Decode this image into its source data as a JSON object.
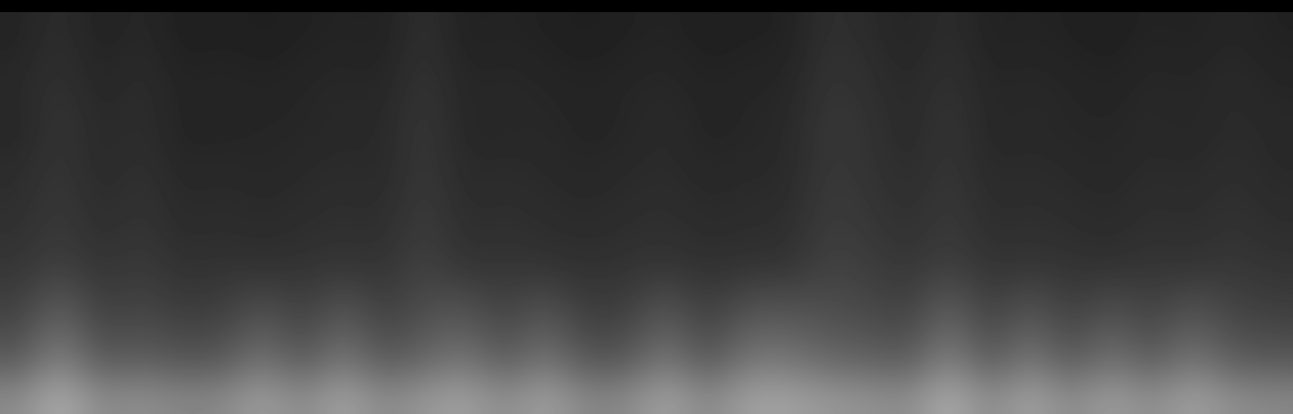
{
  "chart_data": {
    "type": "heatmap",
    "color": "gray",
    "color_range": [
      0,
      100
    ],
    "tick_labels": false,
    "cells": [
      [
        14,
        18,
        13,
        16,
        12,
        13,
        12,
        13,
        14,
        13,
        19,
        13,
        14,
        13,
        12,
        13,
        14,
        12,
        13,
        13,
        19,
        17,
        14,
        18,
        13,
        14,
        13,
        12,
        14,
        13,
        15,
        13
      ],
      [
        15,
        19,
        14,
        17,
        13,
        14,
        13,
        14,
        15,
        14,
        20,
        14,
        15,
        14,
        13,
        14,
        15,
        13,
        14,
        14,
        20,
        18,
        15,
        19,
        14,
        15,
        14,
        13,
        15,
        14,
        16,
        14
      ],
      [
        16,
        20,
        15,
        18,
        14,
        15,
        14,
        15,
        16,
        15,
        21,
        15,
        16,
        15,
        14,
        15,
        16,
        14,
        15,
        15,
        21,
        19,
        16,
        20,
        15,
        16,
        15,
        14,
        16,
        15,
        17,
        15
      ],
      [
        15,
        21,
        16,
        18,
        14,
        14,
        15,
        15,
        16,
        16,
        22,
        15,
        15,
        16,
        14,
        15,
        17,
        14,
        15,
        16,
        22,
        20,
        16,
        21,
        15,
        16,
        15,
        15,
        16,
        15,
        17,
        16
      ],
      [
        17,
        21,
        16,
        19,
        15,
        16,
        15,
        16,
        17,
        16,
        22,
        16,
        17,
        16,
        15,
        16,
        17,
        15,
        16,
        16,
        22,
        20,
        17,
        21,
        16,
        17,
        16,
        15,
        17,
        16,
        18,
        16
      ],
      [
        18,
        22,
        17,
        20,
        16,
        17,
        16,
        17,
        18,
        17,
        23,
        17,
        18,
        17,
        16,
        17,
        18,
        16,
        17,
        17,
        23,
        21,
        18,
        22,
        17,
        18,
        17,
        16,
        18,
        17,
        19,
        17
      ],
      [
        19,
        23,
        18,
        21,
        17,
        18,
        17,
        18,
        19,
        18,
        24,
        18,
        19,
        18,
        17,
        18,
        19,
        17,
        18,
        18,
        24,
        22,
        19,
        23,
        18,
        19,
        18,
        17,
        19,
        18,
        20,
        18
      ],
      [
        21,
        25,
        20,
        23,
        19,
        20,
        19,
        20,
        21,
        20,
        26,
        20,
        21,
        20,
        19,
        20,
        21,
        19,
        20,
        20,
        26,
        24,
        21,
        25,
        20,
        21,
        20,
        19,
        21,
        20,
        22,
        20
      ],
      [
        24,
        34,
        23,
        26,
        22,
        23,
        28,
        23,
        30,
        23,
        29,
        29,
        24,
        29,
        22,
        23,
        30,
        22,
        29,
        29,
        29,
        27,
        24,
        34,
        23,
        30,
        23,
        28,
        24,
        29,
        25,
        23
      ],
      [
        29,
        43,
        28,
        31,
        27,
        28,
        37,
        28,
        39,
        28,
        34,
        38,
        29,
        38,
        27,
        28,
        39,
        27,
        38,
        38,
        34,
        32,
        29,
        43,
        28,
        39,
        28,
        37,
        29,
        38,
        30,
        28
      ],
      [
        37,
        53,
        36,
        39,
        35,
        36,
        47,
        36,
        49,
        36,
        42,
        48,
        37,
        48,
        35,
        36,
        49,
        35,
        48,
        48,
        42,
        40,
        37,
        53,
        36,
        49,
        36,
        47,
        37,
        48,
        38,
        36
      ],
      [
        54,
        68,
        53,
        56,
        52,
        53,
        62,
        53,
        64,
        53,
        59,
        63,
        54,
        63,
        52,
        53,
        64,
        52,
        63,
        63,
        59,
        57,
        54,
        68,
        53,
        64,
        53,
        62,
        54,
        63,
        55,
        53
      ]
    ]
  }
}
